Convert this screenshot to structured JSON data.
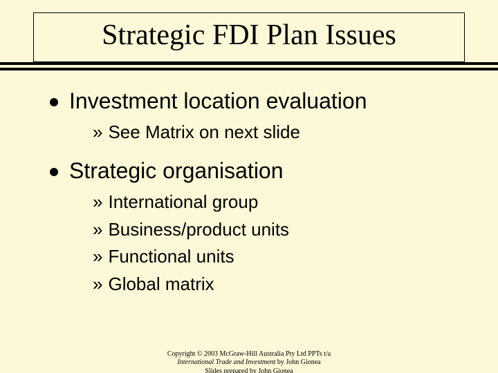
{
  "colors": {
    "background": "#fdf8d8",
    "text": "#000000",
    "rule": "#000000",
    "border": "#000000"
  },
  "typography": {
    "title_font": "Georgia, 'Times New Roman', serif",
    "body_font": "Arial, Helvetica, sans-serif",
    "title_size_pt": 42,
    "main_item_size_pt": 32,
    "sub_item_size_pt": 26,
    "footer_size_pt": 10
  },
  "title": "Strategic FDI Plan Issues",
  "items": [
    {
      "text": "Investment location evaluation",
      "subs": [
        "See Matrix on next slide"
      ]
    },
    {
      "text": "Strategic organisation",
      "subs": [
        "International group",
        "Business/product units",
        "Functional units",
        "Global matrix"
      ]
    }
  ],
  "footer": {
    "line1_a": "Copyright © 2003 McGraw-Hill Australia Pty Ltd PPTs t/a",
    "line2_italic": "International Trade and Investment",
    "line2_b": " by John Gionea",
    "line3": "Slides prepared by John Gionea"
  }
}
